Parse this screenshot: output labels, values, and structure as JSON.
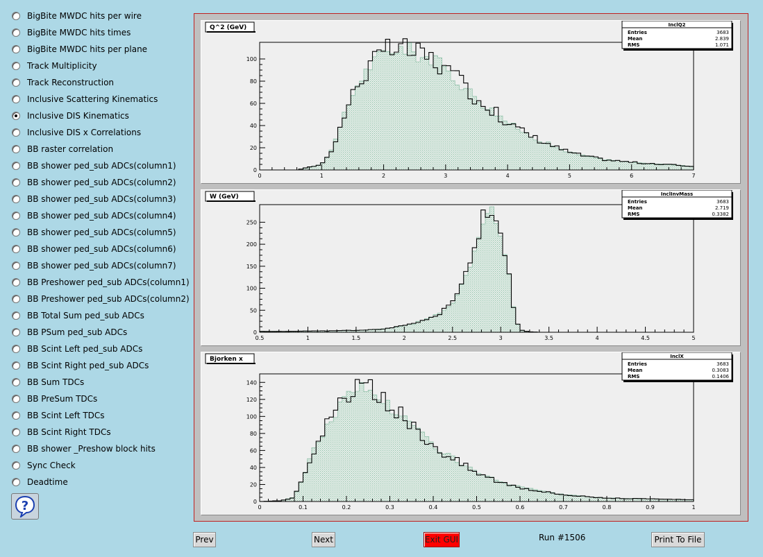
{
  "menu": {
    "items": [
      {
        "label": "BigBite MWDC hits per wire",
        "checked": false
      },
      {
        "label": "BigBite MWDC hits times",
        "checked": false
      },
      {
        "label": "BigBite MWDC hits per plane",
        "checked": false
      },
      {
        "label": "Track Multiplicity",
        "checked": false
      },
      {
        "label": "Track Reconstruction",
        "checked": false
      },
      {
        "label": "Inclusive Scattering Kinematics",
        "checked": false
      },
      {
        "label": "Inclusive DIS Kinematics",
        "checked": true
      },
      {
        "label": "Inclusive DIS x Correlations",
        "checked": false
      },
      {
        "label": "BB raster correlation",
        "checked": false
      },
      {
        "label": "BB shower ped_sub ADCs(column1)",
        "checked": false
      },
      {
        "label": "BB shower ped_sub ADCs(column2)",
        "checked": false
      },
      {
        "label": "BB shower ped_sub ADCs(column3)",
        "checked": false
      },
      {
        "label": "BB shower ped_sub ADCs(column4)",
        "checked": false
      },
      {
        "label": "BB shower ped_sub ADCs(column5)",
        "checked": false
      },
      {
        "label": "BB shower ped_sub ADCs(column6)",
        "checked": false
      },
      {
        "label": "BB shower ped_sub ADCs(column7)",
        "checked": false
      },
      {
        "label": "BB Preshower ped_sub ADCs(column1)",
        "checked": false
      },
      {
        "label": "BB Preshower ped_sub ADCs(column2)",
        "checked": false
      },
      {
        "label": "BB Total Sum ped_sub ADCs",
        "checked": false
      },
      {
        "label": "BB PSum ped_sub ADCs",
        "checked": false
      },
      {
        "label": "BB Scint Left ped_sub ADCs",
        "checked": false
      },
      {
        "label": "BB Scint Right ped_sub ADCs",
        "checked": false
      },
      {
        "label": "BB Sum TDCs",
        "checked": false
      },
      {
        "label": "BB PreSum TDCs",
        "checked": false
      },
      {
        "label": "BB Scint Left TDCs",
        "checked": false
      },
      {
        "label": "BB Scint Right TDCs",
        "checked": false
      },
      {
        "label": "BB shower _Preshow block hits",
        "checked": false
      },
      {
        "label": "Sync Check",
        "checked": false
      },
      {
        "label": "Deadtime",
        "checked": false
      }
    ]
  },
  "footer": {
    "prev_label": "Prev",
    "next_label": "Next",
    "exit_label": "Exit GUI",
    "run_label": "Run #1506",
    "print_label": "Print To File"
  },
  "colors": {
    "fill": "#8fc0a8",
    "line": "#000000",
    "exit": "#ff0000",
    "background": "#add8e6"
  },
  "chart_data": [
    {
      "type": "histogram",
      "title": "Q^2 (GeV)",
      "stats": {
        "name": "InclQ2",
        "rows": [
          [
            "Entries",
            "3683"
          ],
          [
            "Mean",
            "2.839"
          ],
          [
            "RMS",
            "1.071"
          ]
        ]
      },
      "xlim": [
        0,
        7
      ],
      "ylim": [
        0,
        115
      ],
      "xticks": [
        "0",
        "1",
        "2",
        "3",
        "4",
        "5",
        "6",
        "7"
      ],
      "yticks": [
        "0",
        "20",
        "40",
        "60",
        "80",
        "100"
      ],
      "peaks": [
        [
          0.6,
          0
        ],
        [
          1.0,
          5
        ],
        [
          1.2,
          22
        ],
        [
          1.4,
          55
        ],
        [
          1.6,
          80
        ],
        [
          1.8,
          95
        ],
        [
          2.0,
          105
        ],
        [
          2.2,
          110
        ],
        [
          2.4,
          108
        ],
        [
          2.6,
          103
        ],
        [
          2.8,
          100
        ],
        [
          3.0,
          90
        ],
        [
          3.2,
          80
        ],
        [
          3.4,
          70
        ],
        [
          3.6,
          60
        ],
        [
          3.8,
          52
        ],
        [
          4.0,
          43
        ],
        [
          4.2,
          36
        ],
        [
          4.4,
          30
        ],
        [
          4.6,
          25
        ],
        [
          4.8,
          20
        ],
        [
          5.0,
          16
        ],
        [
          5.2,
          13
        ],
        [
          5.4,
          11
        ],
        [
          5.6,
          9
        ],
        [
          5.8,
          8
        ],
        [
          6.0,
          7
        ],
        [
          6.2,
          6
        ],
        [
          6.4,
          5
        ],
        [
          6.6,
          5
        ],
        [
          6.8,
          4
        ],
        [
          7.0,
          3
        ]
      ]
    },
    {
      "type": "histogram",
      "title": "W (GeV)",
      "stats": {
        "name": "InclInvMass",
        "rows": [
          [
            "Entries",
            "3683"
          ],
          [
            "Mean",
            "2.719"
          ],
          [
            "RMS",
            "0.3382"
          ]
        ]
      },
      "xlim": [
        0.5,
        5
      ],
      "ylim": [
        0,
        290
      ],
      "xticks": [
        "0.5",
        "1",
        "1.5",
        "2",
        "2.5",
        "3",
        "3.5",
        "4",
        "4.5",
        "5"
      ],
      "yticks": [
        "0",
        "50",
        "100",
        "150",
        "200",
        "250"
      ],
      "peaks": [
        [
          0.5,
          2
        ],
        [
          0.8,
          2
        ],
        [
          1.0,
          3
        ],
        [
          1.2,
          3
        ],
        [
          1.4,
          4
        ],
        [
          1.6,
          5
        ],
        [
          1.8,
          8
        ],
        [
          2.0,
          15
        ],
        [
          2.1,
          20
        ],
        [
          2.2,
          28
        ],
        [
          2.3,
          35
        ],
        [
          2.4,
          48
        ],
        [
          2.5,
          70
        ],
        [
          2.6,
          110
        ],
        [
          2.7,
          160
        ],
        [
          2.75,
          200
        ],
        [
          2.8,
          245
        ],
        [
          2.85,
          270
        ],
        [
          2.9,
          275
        ],
        [
          2.95,
          255
        ],
        [
          3.0,
          215
        ],
        [
          3.05,
          175
        ],
        [
          3.1,
          110
        ],
        [
          3.15,
          35
        ],
        [
          3.2,
          5
        ],
        [
          3.3,
          1
        ],
        [
          3.4,
          0
        ],
        [
          5.0,
          0
        ]
      ]
    },
    {
      "type": "histogram",
      "title": "Bjorken x",
      "stats": {
        "name": "InclX",
        "rows": [
          [
            "Entries",
            "3683"
          ],
          [
            "Mean",
            "0.3083"
          ],
          [
            "RMS",
            "0.1406"
          ]
        ]
      },
      "xlim": [
        0,
        1
      ],
      "ylim": [
        0,
        150
      ],
      "xticks": [
        "0",
        "0.1",
        "0.2",
        "0.3",
        "0.4",
        "0.5",
        "0.6",
        "0.7",
        "0.8",
        "0.9",
        "1"
      ],
      "yticks": [
        "0",
        "20",
        "40",
        "60",
        "80",
        "100",
        "120",
        "140"
      ],
      "peaks": [
        [
          0.0,
          0
        ],
        [
          0.05,
          1
        ],
        [
          0.08,
          5
        ],
        [
          0.1,
          30
        ],
        [
          0.12,
          55
        ],
        [
          0.15,
          85
        ],
        [
          0.18,
          110
        ],
        [
          0.2,
          122
        ],
        [
          0.22,
          130
        ],
        [
          0.24,
          135
        ],
        [
          0.26,
          130
        ],
        [
          0.28,
          120
        ],
        [
          0.3,
          112
        ],
        [
          0.32,
          103
        ],
        [
          0.34,
          95
        ],
        [
          0.36,
          85
        ],
        [
          0.38,
          76
        ],
        [
          0.4,
          68
        ],
        [
          0.42,
          60
        ],
        [
          0.44,
          53
        ],
        [
          0.46,
          46
        ],
        [
          0.48,
          40
        ],
        [
          0.5,
          34
        ],
        [
          0.55,
          24
        ],
        [
          0.6,
          17
        ],
        [
          0.65,
          12
        ],
        [
          0.7,
          8
        ],
        [
          0.75,
          6
        ],
        [
          0.8,
          4
        ],
        [
          0.9,
          3
        ],
        [
          1.0,
          2
        ]
      ]
    }
  ]
}
